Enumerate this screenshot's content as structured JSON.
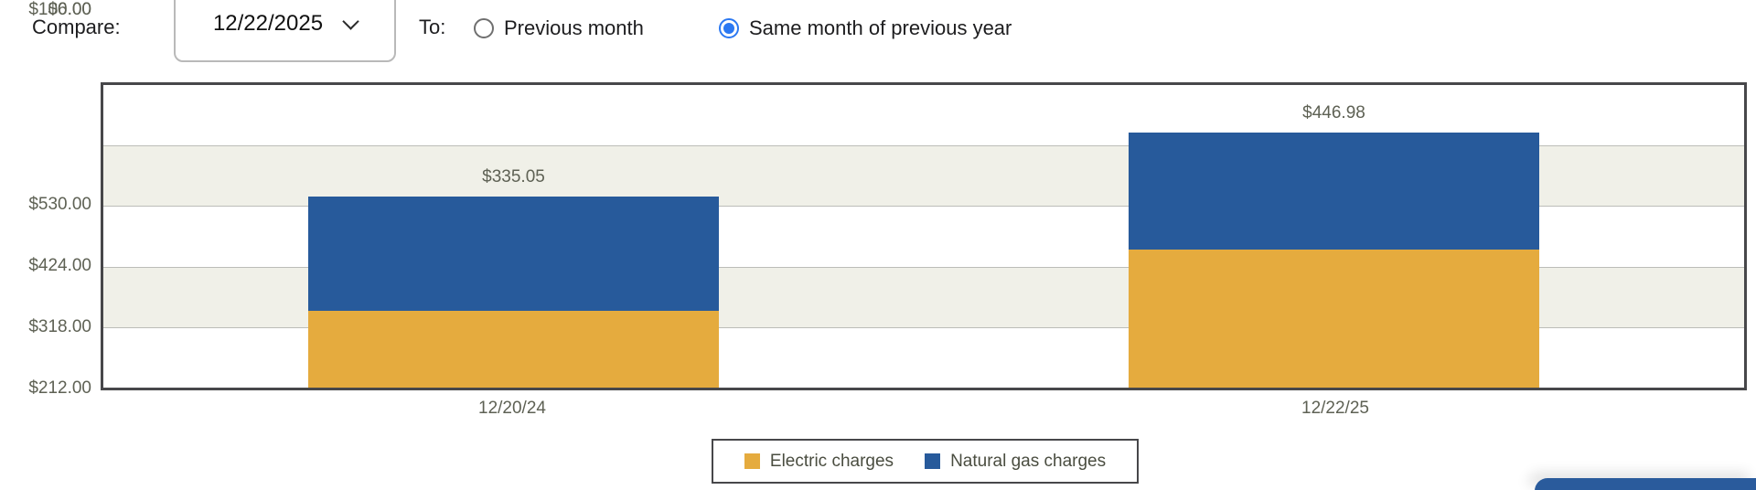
{
  "controls": {
    "compare_label": "Compare:",
    "date_select": {
      "value": "12/22/2025"
    },
    "to_label": "To:",
    "radio_options": [
      {
        "label": "Previous month",
        "selected": false
      },
      {
        "label": "Same month of previous year",
        "selected": true
      }
    ]
  },
  "chart_data": {
    "type": "bar",
    "stacked": true,
    "categories": [
      "12/20/24",
      "12/22/25"
    ],
    "series": [
      {
        "name": "Electric charges",
        "color": "#e5ab3e",
        "values": [
          135.05,
          242.0
        ]
      },
      {
        "name": "Natural gas charges",
        "color": "#275a9b",
        "values": [
          200.0,
          204.98
        ]
      }
    ],
    "totals": [
      335.05,
      446.98
    ],
    "total_labels": [
      "$335.05",
      "$446.98"
    ],
    "yticks": [
      "$530.00",
      "$424.00",
      "$318.00",
      "$212.00",
      "$106.00",
      "$0.00"
    ],
    "ylim": [
      0,
      530
    ],
    "ytick_interval": 106,
    "xlabel": "",
    "ylabel": "",
    "legend_position": "bottom-center",
    "grid": "horizontal-bands",
    "precision_note": "totals are labeled on chart; per-segment split estimated from gridlines"
  },
  "colors": {
    "electric": "#e5ab3e",
    "natural_gas": "#275a9b",
    "radio_selected": "#2b78f2",
    "axis_text": "#5e6154",
    "plot_border": "#47474a",
    "gridline": "#bcbdb8",
    "band_beige": "#f0f0e8",
    "corner_button_blue": "#2a5b9c"
  }
}
